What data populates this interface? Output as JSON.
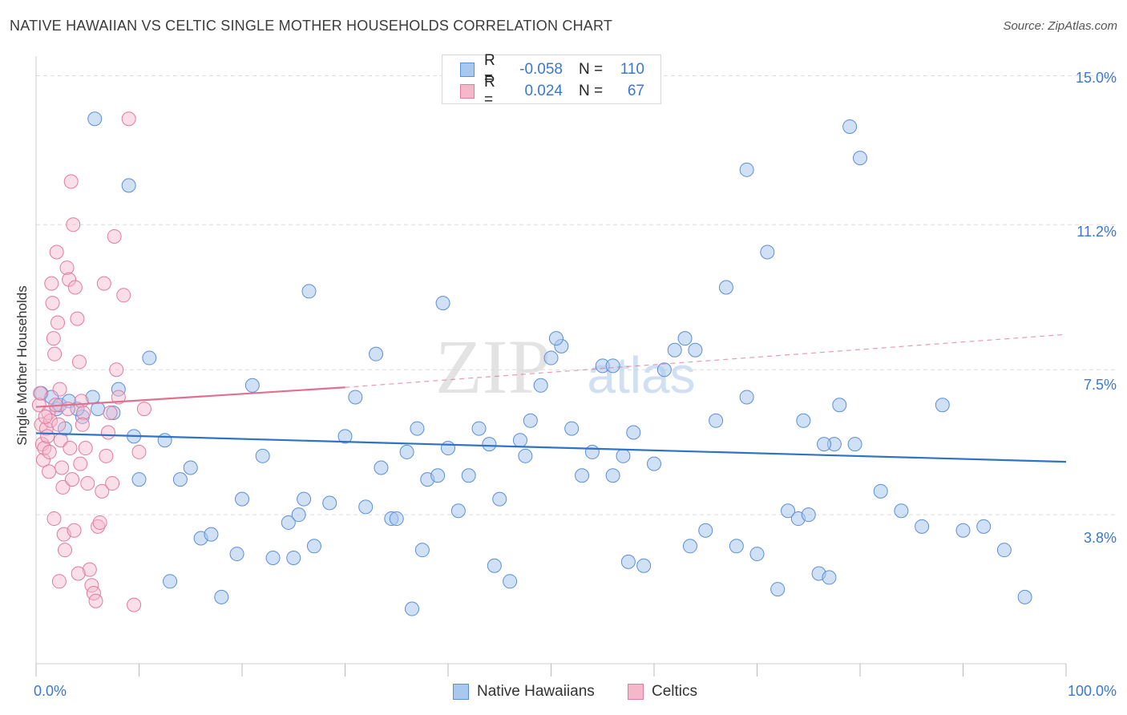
{
  "title": "NATIVE HAWAIIAN VS CELTIC SINGLE MOTHER HOUSEHOLDS CORRELATION CHART",
  "source": "Source: ZipAtlas.com",
  "watermark": {
    "zip": "ZIP",
    "atlas": "atlas"
  },
  "legend": {
    "rows": [
      {
        "r_label": "R =",
        "r_value": "-0.058",
        "n_label": "N =",
        "n_value": "110"
      },
      {
        "r_label": "R =",
        "r_value": "0.024",
        "n_label": "N =",
        "n_value": "67"
      }
    ]
  },
  "bottom_legend": {
    "series1": "Native Hawaiians",
    "series2": "Celtics"
  },
  "x_tick_labels": {
    "left": "0.0%",
    "right": "100.0%"
  },
  "y_tick_labels": [
    "15.0%",
    "11.2%",
    "7.5%",
    "3.8%"
  ],
  "colors": {
    "blue_fill": "#a9c8ef",
    "blue_stroke": "#5b8fd6",
    "blue_line": "#2f72c9",
    "pink_fill": "#f5b8cb",
    "pink_stroke": "#e27aa0",
    "pink_line": "#e0708f",
    "grid": "#dcdcdc",
    "tick_text": "#3a78d0"
  },
  "chart_data": {
    "type": "scatter",
    "title": "NATIVE HAWAIIAN VS CELTIC SINGLE MOTHER HOUSEHOLDS CORRELATION CHART",
    "xlabel": "",
    "ylabel": "Single Mother Households",
    "xlim": [
      0,
      100
    ],
    "ylim": [
      0.0,
      15.5
    ],
    "y_gridlines": [
      3.8,
      7.5,
      11.2,
      15.0
    ],
    "grid": true,
    "legend_position": "top-center",
    "series": [
      {
        "name": "Native Hawaiians",
        "color": "#a9c8ef",
        "trend": {
          "x": [
            0,
            100
          ],
          "y": [
            5.88,
            5.15
          ]
        },
        "points": [
          [
            0.5,
            6.9
          ],
          [
            1.5,
            6.8
          ],
          [
            2.0,
            6.5
          ],
          [
            2.3,
            6.6
          ],
          [
            2.8,
            6.0
          ],
          [
            3.2,
            6.7
          ],
          [
            4.5,
            6.3
          ],
          [
            5.5,
            6.8
          ],
          [
            4.0,
            6.5
          ],
          [
            7.5,
            6.4
          ],
          [
            5.7,
            13.9
          ],
          [
            9.0,
            12.2
          ],
          [
            11.0,
            7.8
          ],
          [
            13.0,
            2.1
          ],
          [
            12.5,
            5.7
          ],
          [
            14.0,
            4.7
          ],
          [
            15.0,
            5.0
          ],
          [
            10.0,
            4.7
          ],
          [
            18.0,
            1.7
          ],
          [
            19.5,
            2.8
          ],
          [
            20.0,
            4.2
          ],
          [
            22.0,
            5.3
          ],
          [
            23.0,
            2.7
          ],
          [
            24.5,
            3.6
          ],
          [
            25.0,
            2.7
          ],
          [
            25.5,
            3.8
          ],
          [
            26.0,
            4.2
          ],
          [
            27.0,
            3.0
          ],
          [
            28.5,
            4.1
          ],
          [
            30.0,
            5.8
          ],
          [
            31.0,
            6.8
          ],
          [
            32.0,
            4.0
          ],
          [
            33.5,
            5.0
          ],
          [
            34.5,
            3.7
          ],
          [
            35.0,
            3.7
          ],
          [
            36.0,
            5.4
          ],
          [
            37.0,
            6.0
          ],
          [
            38.0,
            4.7
          ],
          [
            39.0,
            4.8
          ],
          [
            40.0,
            5.5
          ],
          [
            41.0,
            3.9
          ],
          [
            42.0,
            4.8
          ],
          [
            43.0,
            6.0
          ],
          [
            44.0,
            5.6
          ],
          [
            45.0,
            4.2
          ],
          [
            46.0,
            2.1
          ],
          [
            47.0,
            5.7
          ],
          [
            48.0,
            6.2
          ],
          [
            49.0,
            7.1
          ],
          [
            50.0,
            7.8
          ],
          [
            51.0,
            8.1
          ],
          [
            52.0,
            6.0
          ],
          [
            53.0,
            4.8
          ],
          [
            54.0,
            5.4
          ],
          [
            55.0,
            7.6
          ],
          [
            56.0,
            4.8
          ],
          [
            57.0,
            5.3
          ],
          [
            58.0,
            5.9
          ],
          [
            59.0,
            2.5
          ],
          [
            60.0,
            5.1
          ],
          [
            63.0,
            8.3
          ],
          [
            62.0,
            8.0
          ],
          [
            64.0,
            8.0
          ],
          [
            65.0,
            3.4
          ],
          [
            66.0,
            6.2
          ],
          [
            67.0,
            9.6
          ],
          [
            68.0,
            3.0
          ],
          [
            69.0,
            12.6
          ],
          [
            70.0,
            2.8
          ],
          [
            72.0,
            1.9
          ],
          [
            73.0,
            3.9
          ],
          [
            74.0,
            3.7
          ],
          [
            75.0,
            3.8
          ],
          [
            76.0,
            2.3
          ],
          [
            77.0,
            2.2
          ],
          [
            78.0,
            6.6
          ],
          [
            79.0,
            13.7
          ],
          [
            80.0,
            12.9
          ],
          [
            56.0,
            7.6
          ],
          [
            61.0,
            7.5
          ],
          [
            71.0,
            10.5
          ],
          [
            69.0,
            6.8
          ],
          [
            21.0,
            7.1
          ],
          [
            16.0,
            3.2
          ],
          [
            17.0,
            3.3
          ],
          [
            26.5,
            9.5
          ],
          [
            33.0,
            7.9
          ],
          [
            8.0,
            7.0
          ],
          [
            6.0,
            6.5
          ],
          [
            9.5,
            5.8
          ],
          [
            39.5,
            9.2
          ],
          [
            50.5,
            8.3
          ],
          [
            47.5,
            5.3
          ],
          [
            44.5,
            2.5
          ],
          [
            36.5,
            1.4
          ],
          [
            37.5,
            2.9
          ],
          [
            57.5,
            2.6
          ],
          [
            63.5,
            3.0
          ],
          [
            82.0,
            4.4
          ],
          [
            84.0,
            3.9
          ],
          [
            86.0,
            3.5
          ],
          [
            88.0,
            6.6
          ],
          [
            90.0,
            3.4
          ],
          [
            92.0,
            3.5
          ],
          [
            94.0,
            2.9
          ],
          [
            96.0,
            1.7
          ],
          [
            74.5,
            6.2
          ],
          [
            77.5,
            5.6
          ],
          [
            76.5,
            5.6
          ],
          [
            79.5,
            5.6
          ]
        ]
      },
      {
        "name": "Celtics",
        "color": "#f5b8cb",
        "trend": {
          "x": [
            0,
            30
          ],
          "y": [
            6.55,
            7.05
          ],
          "dashed_to": {
            "x": 100,
            "y": 8.4
          }
        },
        "points": [
          [
            0.3,
            6.6
          ],
          [
            0.5,
            6.1
          ],
          [
            0.6,
            5.6
          ],
          [
            0.7,
            5.2
          ],
          [
            0.8,
            5.5
          ],
          [
            1.0,
            6.0
          ],
          [
            1.1,
            5.8
          ],
          [
            1.2,
            6.4
          ],
          [
            1.3,
            5.4
          ],
          [
            1.4,
            6.2
          ],
          [
            1.5,
            9.7
          ],
          [
            1.6,
            9.2
          ],
          [
            1.7,
            8.3
          ],
          [
            1.8,
            7.9
          ],
          [
            1.9,
            6.6
          ],
          [
            2.0,
            10.5
          ],
          [
            2.1,
            8.7
          ],
          [
            2.2,
            6.1
          ],
          [
            2.3,
            7.0
          ],
          [
            2.4,
            5.7
          ],
          [
            2.5,
            5.0
          ],
          [
            2.6,
            4.5
          ],
          [
            2.7,
            3.3
          ],
          [
            2.8,
            2.9
          ],
          [
            3.0,
            10.1
          ],
          [
            3.2,
            9.8
          ],
          [
            3.4,
            12.3
          ],
          [
            3.6,
            11.2
          ],
          [
            3.8,
            9.6
          ],
          [
            4.0,
            8.8
          ],
          [
            4.2,
            7.7
          ],
          [
            4.4,
            6.7
          ],
          [
            4.6,
            6.4
          ],
          [
            4.8,
            5.5
          ],
          [
            5.0,
            4.6
          ],
          [
            5.2,
            2.4
          ],
          [
            5.4,
            2.0
          ],
          [
            5.6,
            1.8
          ],
          [
            5.8,
            1.6
          ],
          [
            6.0,
            3.5
          ],
          [
            6.2,
            3.6
          ],
          [
            6.4,
            4.4
          ],
          [
            6.6,
            9.7
          ],
          [
            6.8,
            5.3
          ],
          [
            7.0,
            5.9
          ],
          [
            7.2,
            6.4
          ],
          [
            7.4,
            4.6
          ],
          [
            7.6,
            10.9
          ],
          [
            7.8,
            7.5
          ],
          [
            8.0,
            6.8
          ],
          [
            8.5,
            9.4
          ],
          [
            9.0,
            13.9
          ],
          [
            9.5,
            1.5
          ],
          [
            10.0,
            5.4
          ],
          [
            10.5,
            6.5
          ],
          [
            0.4,
            6.9
          ],
          [
            0.9,
            6.3
          ],
          [
            1.25,
            4.9
          ],
          [
            1.75,
            3.7
          ],
          [
            2.25,
            2.1
          ],
          [
            3.1,
            6.5
          ],
          [
            3.3,
            5.5
          ],
          [
            3.5,
            4.7
          ],
          [
            3.7,
            3.4
          ],
          [
            4.1,
            2.3
          ],
          [
            4.3,
            5.1
          ],
          [
            4.5,
            6.1
          ]
        ]
      }
    ]
  }
}
